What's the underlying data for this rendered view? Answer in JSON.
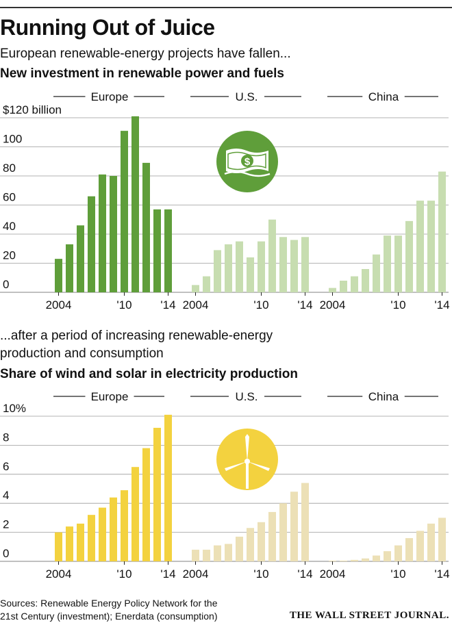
{
  "headline": "Running Out of Juice",
  "part1": {
    "dek": "European renewable-energy projects have fallen...",
    "subtitle": "New investment in renewable power and fuels"
  },
  "part2": {
    "dek_line1": "...after a period of increasing renewable-energy",
    "dek_line2": "production and consumption",
    "subtitle": "Share of wind and solar in electricity production"
  },
  "icons": [
    "money-icon",
    "wind-turbine-icon"
  ],
  "colors": {
    "investment_europe": "#5f9e3a",
    "investment_other": "#c7ddb0",
    "investment_icon_bg": "#5f9e3a",
    "share_europe": "#f3d23f",
    "share_other": "#ece0b6",
    "share_icon_bg": "#f3d23f"
  },
  "chart_data": [
    {
      "type": "bar",
      "title": "New investment in renewable power and fuels",
      "y_unit_label": "$120 billion",
      "ytick_labels": [
        "$120 billion",
        "100",
        "80",
        "60",
        "40",
        "20",
        "0"
      ],
      "ylim": [
        0,
        120
      ],
      "panels": [
        {
          "name": "Europe",
          "x": [
            2004,
            2005,
            2006,
            2007,
            2008,
            2009,
            2010,
            2011,
            2012,
            2013,
            2014
          ],
          "values": [
            23,
            33,
            46,
            66,
            81,
            80,
            111,
            121,
            89,
            57,
            57
          ]
        },
        {
          "name": "U.S.",
          "x": [
            2004,
            2005,
            2006,
            2007,
            2008,
            2009,
            2010,
            2011,
            2012,
            2013,
            2014
          ],
          "values": [
            5,
            11,
            29,
            33,
            35,
            24,
            35,
            50,
            38,
            36,
            38
          ]
        },
        {
          "name": "China",
          "x": [
            2004,
            2005,
            2006,
            2007,
            2008,
            2009,
            2010,
            2011,
            2012,
            2013,
            2014
          ],
          "values": [
            3,
            8,
            11,
            16,
            26,
            39,
            39,
            49,
            63,
            63,
            83
          ]
        }
      ],
      "xtick_labels": [
        "2004",
        "'10",
        "'14"
      ],
      "grid": true
    },
    {
      "type": "bar",
      "title": "Share of wind and solar in electricity production",
      "y_unit_label": "10%",
      "ytick_labels": [
        "10%",
        "8",
        "6",
        "4",
        "2",
        "0"
      ],
      "ylim": [
        0,
        10
      ],
      "panels": [
        {
          "name": "Europe",
          "x": [
            2004,
            2005,
            2006,
            2007,
            2008,
            2009,
            2010,
            2011,
            2012,
            2013,
            2014
          ],
          "values": [
            2.0,
            2.4,
            2.6,
            3.2,
            3.7,
            4.4,
            4.9,
            6.5,
            7.8,
            9.2,
            10.1
          ]
        },
        {
          "name": "U.S.",
          "x": [
            2004,
            2005,
            2006,
            2007,
            2008,
            2009,
            2010,
            2011,
            2012,
            2013,
            2014
          ],
          "values": [
            0.8,
            0.8,
            1.1,
            1.2,
            1.7,
            2.3,
            2.7,
            3.4,
            4.0,
            4.8,
            5.4
          ]
        },
        {
          "name": "China",
          "x": [
            2004,
            2005,
            2006,
            2007,
            2008,
            2009,
            2010,
            2011,
            2012,
            2013,
            2014
          ],
          "values": [
            0.05,
            0.05,
            0.1,
            0.2,
            0.4,
            0.7,
            1.1,
            1.6,
            2.1,
            2.6,
            3.0
          ]
        }
      ],
      "xtick_labels": [
        "2004",
        "'10",
        "'14"
      ],
      "grid": true
    }
  ],
  "footer": {
    "sources_line1": "Sources: Renewable Energy Policy Network for the",
    "sources_line2": "21st Century (investment); Enerdata (consumption)",
    "publisher": "THE WALL STREET JOURNAL."
  }
}
